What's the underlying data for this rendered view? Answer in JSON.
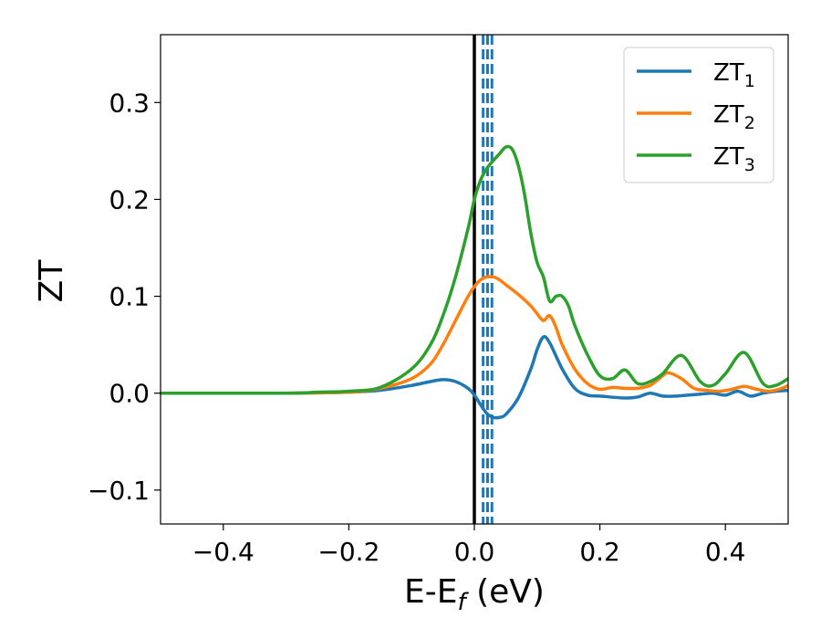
{
  "chart_data": {
    "type": "line",
    "title": "",
    "xlabel": "E-E",
    "xlabel_sub": "f",
    "xlabel_unit": " (eV)",
    "ylabel": "ZT",
    "xlim": [
      -0.5,
      0.5
    ],
    "ylim": [
      -0.135,
      0.37
    ],
    "xticks": [
      -0.4,
      -0.2,
      0.0,
      0.2,
      0.4
    ],
    "xtick_labels": [
      "−0.4",
      "−0.2",
      "0.0",
      "0.2",
      "0.4"
    ],
    "yticks": [
      -0.1,
      0.0,
      0.1,
      0.2,
      0.3
    ],
    "ytick_labels": [
      "−0.1",
      "0.0",
      "0.1",
      "0.2",
      "0.3"
    ],
    "grid": false,
    "legend_position": "top-right",
    "vertical_lines": [
      {
        "x": 0.0,
        "style": "solid",
        "color": "#000000"
      },
      {
        "x": 0.014,
        "style": "dashed",
        "color": "#1f77b4"
      },
      {
        "x": 0.021,
        "style": "dashed",
        "color": "#1f77b4"
      },
      {
        "x": 0.028,
        "style": "dashed",
        "color": "#1f77b4"
      }
    ],
    "series": [
      {
        "name": "ZT",
        "name_sub": "1",
        "color": "#1f77b4",
        "x": [
          -0.5,
          -0.3,
          -0.2,
          -0.15,
          -0.1,
          -0.07,
          -0.05,
          -0.03,
          -0.01,
          0.0,
          0.01,
          0.02,
          0.03,
          0.04,
          0.05,
          0.07,
          0.09,
          0.1,
          0.11,
          0.12,
          0.14,
          0.16,
          0.18,
          0.2,
          0.24,
          0.26,
          0.28,
          0.3,
          0.32,
          0.34,
          0.36,
          0.38,
          0.4,
          0.42,
          0.44,
          0.46,
          0.48,
          0.5
        ],
        "y": [
          0,
          0,
          0.001,
          0.003,
          0.008,
          0.012,
          0.014,
          0.012,
          0.005,
          -0.002,
          -0.012,
          -0.021,
          -0.025,
          -0.025,
          -0.022,
          -0.005,
          0.025,
          0.045,
          0.058,
          0.052,
          0.025,
          0.005,
          -0.002,
          -0.003,
          -0.005,
          -0.004,
          0.0,
          -0.003,
          -0.003,
          -0.002,
          -0.001,
          0.0,
          -0.002,
          0.002,
          -0.003,
          0.0,
          0.002,
          0.003
        ]
      },
      {
        "name": "ZT",
        "name_sub": "2",
        "color": "#ff7f0e",
        "x": [
          -0.5,
          -0.3,
          -0.2,
          -0.15,
          -0.1,
          -0.07,
          -0.05,
          -0.03,
          -0.01,
          0.0,
          0.01,
          0.02,
          0.03,
          0.04,
          0.05,
          0.07,
          0.09,
          0.1,
          0.11,
          0.12,
          0.13,
          0.14,
          0.16,
          0.18,
          0.2,
          0.22,
          0.24,
          0.26,
          0.28,
          0.3,
          0.31,
          0.33,
          0.35,
          0.37,
          0.39,
          0.41,
          0.43,
          0.45,
          0.47,
          0.49,
          0.5
        ],
        "y": [
          0,
          0,
          0.001,
          0.005,
          0.015,
          0.03,
          0.05,
          0.075,
          0.1,
          0.11,
          0.117,
          0.12,
          0.12,
          0.117,
          0.112,
          0.102,
          0.09,
          0.082,
          0.075,
          0.08,
          0.068,
          0.05,
          0.025,
          0.01,
          0.004,
          0.006,
          0.005,
          0.005,
          0.008,
          0.018,
          0.021,
          0.015,
          0.005,
          0.003,
          0.002,
          0.004,
          0.007,
          0.004,
          0.002,
          0.005,
          0.008
        ]
      },
      {
        "name": "ZT",
        "name_sub": "3",
        "color": "#2ca02c",
        "x": [
          -0.5,
          -0.3,
          -0.25,
          -0.2,
          -0.15,
          -0.1,
          -0.07,
          -0.05,
          -0.03,
          -0.01,
          0.0,
          0.01,
          0.02,
          0.03,
          0.04,
          0.05,
          0.06,
          0.07,
          0.08,
          0.09,
          0.1,
          0.11,
          0.12,
          0.13,
          0.14,
          0.15,
          0.16,
          0.18,
          0.2,
          0.22,
          0.24,
          0.26,
          0.28,
          0.3,
          0.33,
          0.36,
          0.38,
          0.4,
          0.43,
          0.46,
          0.48,
          0.5
        ],
        "y": [
          0,
          0,
          0.001,
          0.002,
          0.006,
          0.025,
          0.05,
          0.08,
          0.12,
          0.17,
          0.2,
          0.22,
          0.232,
          0.24,
          0.247,
          0.254,
          0.252,
          0.235,
          0.205,
          0.165,
          0.135,
          0.12,
          0.095,
          0.1,
          0.1,
          0.09,
          0.07,
          0.04,
          0.018,
          0.015,
          0.024,
          0.01,
          0.012,
          0.02,
          0.039,
          0.012,
          0.008,
          0.02,
          0.042,
          0.01,
          0.008,
          0.015
        ]
      }
    ]
  }
}
